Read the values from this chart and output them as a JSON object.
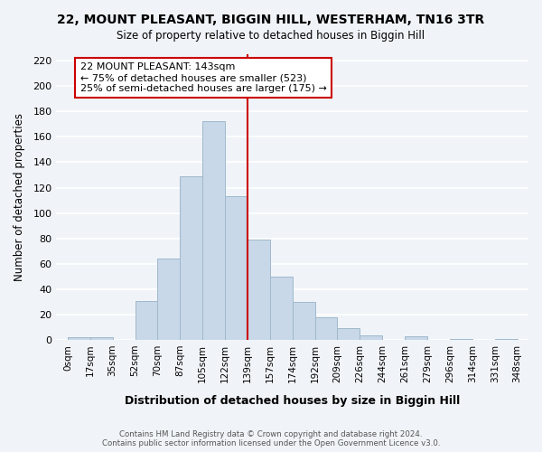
{
  "title": "22, MOUNT PLEASANT, BIGGIN HILL, WESTERHAM, TN16 3TR",
  "subtitle": "Size of property relative to detached houses in Biggin Hill",
  "xlabel": "Distribution of detached houses by size in Biggin Hill",
  "ylabel": "Number of detached properties",
  "footer_line1": "Contains HM Land Registry data © Crown copyright and database right 2024.",
  "footer_line2": "Contains public sector information licensed under the Open Government Licence v3.0.",
  "bin_labels": [
    "0sqm",
    "17sqm",
    "35sqm",
    "52sqm",
    "70sqm",
    "87sqm",
    "105sqm",
    "122sqm",
    "139sqm",
    "157sqm",
    "174sqm",
    "192sqm",
    "209sqm",
    "226sqm",
    "244sqm",
    "261sqm",
    "279sqm",
    "296sqm",
    "314sqm",
    "331sqm",
    "348sqm"
  ],
  "bar_heights": [
    2,
    2,
    0,
    31,
    64,
    129,
    172,
    113,
    79,
    50,
    30,
    18,
    9,
    4,
    0,
    3,
    0,
    1,
    0,
    1
  ],
  "bar_color": "#c8d8e8",
  "bar_edge_color": "#a0b8cc",
  "vline_x": 8,
  "vline_color": "#cc0000",
  "annotation_title": "22 MOUNT PLEASANT: 143sqm",
  "annotation_line1": "← 75% of detached houses are smaller (523)",
  "annotation_line2": "25% of semi-detached houses are larger (175) →",
  "annotation_box_color": "#ffffff",
  "annotation_box_edge": "#cc0000",
  "ylim": [
    0,
    225
  ],
  "yticks": [
    0,
    20,
    40,
    60,
    80,
    100,
    120,
    140,
    160,
    180,
    200,
    220
  ],
  "background_color": "#f0f4f8",
  "grid_color": "#ffffff"
}
